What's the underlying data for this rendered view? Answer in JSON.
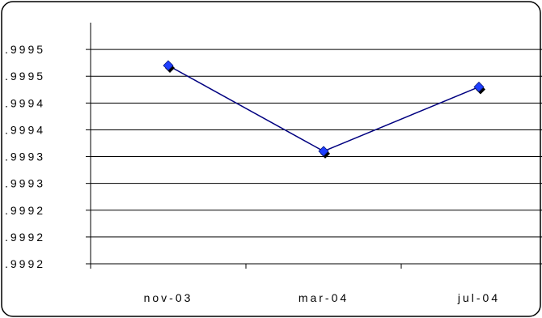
{
  "chart_data": {
    "type": "line",
    "title": "",
    "xlabel": "",
    "ylabel": "",
    "categories": [
      "nov-03",
      "mar-04",
      "jul-04"
    ],
    "series": [
      {
        "values": [
          0.99952,
          0.99936,
          0.99948
        ],
        "color": "#000080",
        "marker_color": "#1f3fff",
        "marker": "diamond"
      }
    ],
    "ylim": [
      0.99915,
      0.9996
    ],
    "y_ticks": [
      0.99915,
      0.9992,
      0.99925,
      0.9993,
      0.99935,
      0.9994,
      0.99945,
      0.9995,
      0.99955
    ],
    "y_tick_labels": [
      ".9992",
      ".9992",
      ".9992",
      ".9993",
      ".9993",
      ".9994",
      ".9994",
      ".9995",
      ".9995"
    ],
    "grid": true,
    "legend": "none"
  }
}
